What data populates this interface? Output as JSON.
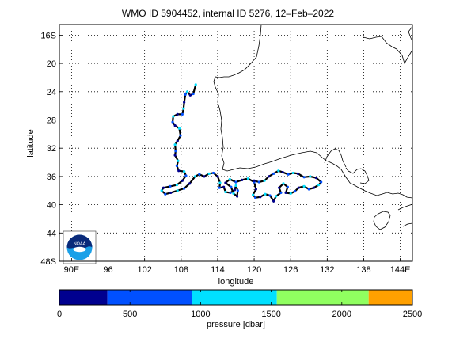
{
  "title": "WMO ID 5904452, internal ID 5276, 12–Feb–2022",
  "map": {
    "xlabel": "longitude",
    "ylabel": "latitude",
    "lon_range": [
      88,
      146
    ],
    "lat_range": [
      48,
      14.5
    ],
    "lon_ticks": [
      {
        "value": 90,
        "label": "90E"
      },
      {
        "value": 96,
        "label": "96"
      },
      {
        "value": 102,
        "label": "102"
      },
      {
        "value": 108,
        "label": "108"
      },
      {
        "value": 114,
        "label": "114"
      },
      {
        "value": 120,
        "label": "120"
      },
      {
        "value": 126,
        "label": "126"
      },
      {
        "value": 132,
        "label": "132"
      },
      {
        "value": 138,
        "label": "138"
      },
      {
        "value": 144,
        "label": "144E"
      }
    ],
    "lat_ticks": [
      {
        "value": 16,
        "label": "16S"
      },
      {
        "value": 20,
        "label": "20"
      },
      {
        "value": 24,
        "label": "24"
      },
      {
        "value": 28,
        "label": "28"
      },
      {
        "value": 32,
        "label": "32"
      },
      {
        "value": 36,
        "label": "36"
      },
      {
        "value": 40,
        "label": "40"
      },
      {
        "value": 44,
        "label": "44"
      },
      {
        "value": 48,
        "label": "48S"
      }
    ],
    "grid": true,
    "track": [
      [
        110.4,
        23.0
      ],
      [
        110.0,
        24.3
      ],
      [
        109.5,
        24.5
      ],
      [
        109.0,
        24.0
      ],
      [
        108.7,
        24.4
      ],
      [
        108.5,
        25.5
      ],
      [
        108.4,
        26.4
      ],
      [
        108.2,
        27.2
      ],
      [
        107.4,
        27.2
      ],
      [
        106.7,
        27.5
      ],
      [
        106.6,
        28.3
      ],
      [
        107.0,
        28.8
      ],
      [
        107.7,
        29.2
      ],
      [
        107.9,
        30.2
      ],
      [
        107.4,
        31.0
      ],
      [
        107.0,
        31.5
      ],
      [
        107.1,
        32.4
      ],
      [
        107.0,
        33.0
      ],
      [
        107.5,
        33.8
      ],
      [
        107.3,
        34.5
      ],
      [
        107.6,
        35.2
      ],
      [
        108.5,
        35.3
      ],
      [
        108.8,
        35.9
      ],
      [
        108.2,
        36.6
      ],
      [
        107.3,
        37.2
      ],
      [
        106.2,
        37.4
      ],
      [
        105.1,
        37.6
      ],
      [
        104.8,
        38.0
      ],
      [
        105.4,
        38.5
      ],
      [
        106.3,
        38.3
      ],
      [
        107.4,
        38.0
      ],
      [
        108.5,
        37.7
      ],
      [
        109.4,
        37.0
      ],
      [
        110.3,
        36.0
      ],
      [
        111.0,
        35.7
      ],
      [
        111.8,
        36.0
      ],
      [
        112.6,
        35.6
      ],
      [
        113.3,
        35.5
      ],
      [
        114.0,
        36.0
      ],
      [
        114.4,
        36.9
      ],
      [
        114.3,
        37.6
      ],
      [
        115.0,
        37.5
      ],
      [
        115.3,
        38.2
      ],
      [
        116.1,
        38.3
      ],
      [
        116.8,
        37.9
      ],
      [
        117.0,
        37.3
      ],
      [
        117.3,
        38.0
      ],
      [
        117.2,
        38.8
      ],
      [
        116.6,
        38.4
      ],
      [
        116.2,
        37.5
      ],
      [
        115.3,
        36.9
      ],
      [
        116.0,
        36.4
      ],
      [
        117.0,
        36.8
      ],
      [
        118.0,
        36.5
      ],
      [
        119.0,
        36.3
      ],
      [
        120.0,
        36.8
      ],
      [
        120.3,
        37.8
      ],
      [
        119.8,
        38.6
      ],
      [
        120.2,
        39.0
      ],
      [
        121.0,
        38.9
      ],
      [
        121.8,
        38.5
      ],
      [
        122.6,
        38.7
      ],
      [
        123.2,
        39.5
      ],
      [
        123.6,
        38.8
      ],
      [
        124.4,
        38.3
      ],
      [
        124.1,
        37.6
      ],
      [
        124.8,
        37.0
      ],
      [
        125.5,
        37.5
      ],
      [
        125.2,
        38.3
      ],
      [
        126.0,
        38.4
      ],
      [
        126.7,
        38.1
      ],
      [
        127.3,
        37.6
      ],
      [
        128.2,
        37.4
      ],
      [
        129.0,
        37.8
      ],
      [
        129.8,
        37.6
      ],
      [
        130.6,
        37.2
      ],
      [
        131.0,
        36.8
      ],
      [
        130.2,
        36.2
      ],
      [
        129.2,
        36.0
      ],
      [
        128.2,
        36.1
      ],
      [
        127.2,
        35.6
      ],
      [
        126.4,
        35.5
      ],
      [
        125.6,
        35.7
      ],
      [
        124.7,
        35.4
      ],
      [
        124.0,
        35.2
      ],
      [
        123.2,
        35.6
      ],
      [
        122.4,
        36.0
      ],
      [
        121.7,
        36.6
      ],
      [
        120.8,
        36.8
      ],
      [
        120.0,
        36.6
      ]
    ]
  },
  "colorbar": {
    "label": "pressure [dbar]",
    "ticks": [
      "0",
      "500",
      "1000",
      "1500",
      "2000",
      "2500"
    ],
    "range": [
      0,
      2500
    ],
    "colors": [
      "#00008f",
      "#0050ff",
      "#00e0ff",
      "#90ff60",
      "#ffa000"
    ],
    "bounds": [
      0,
      340,
      940,
      1540,
      2190,
      2500
    ]
  },
  "logo": {
    "text": "NOAA",
    "colors": {
      "dark_blue": "#0a2a7a",
      "light_blue": "#1aa0e8"
    }
  }
}
